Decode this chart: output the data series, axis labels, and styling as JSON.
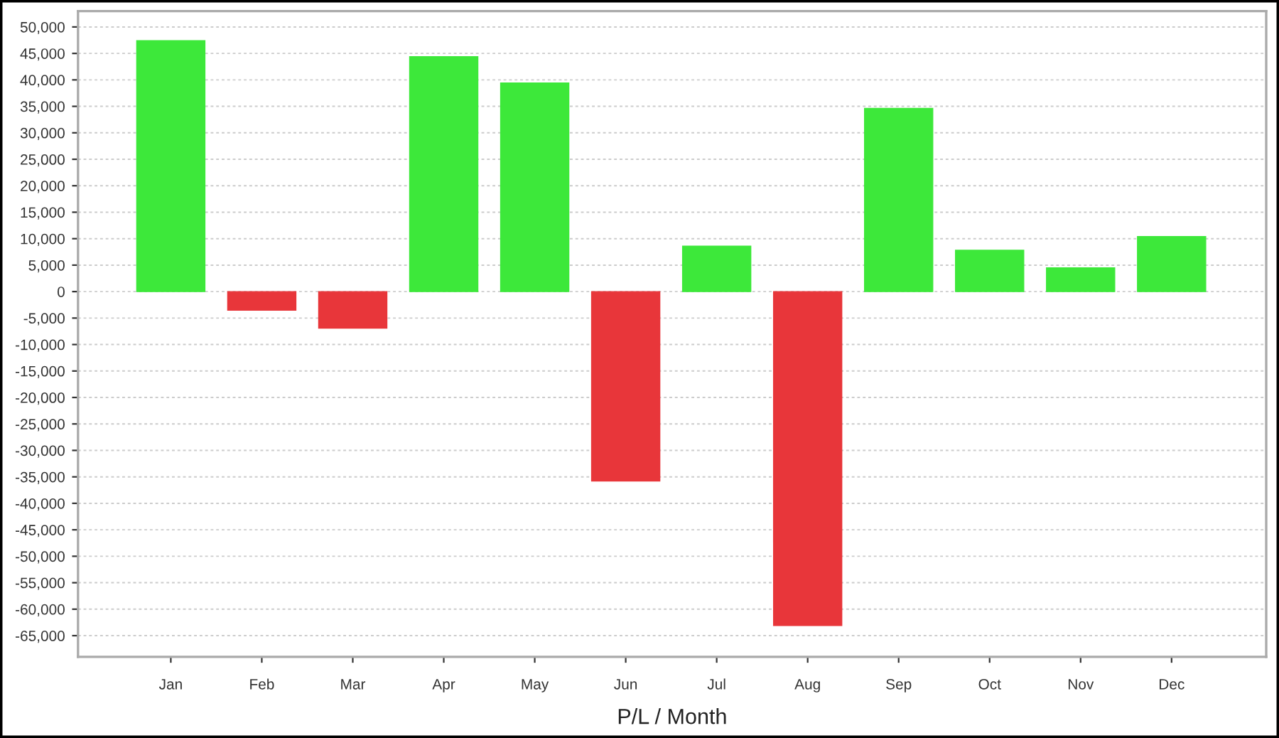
{
  "chart_data": {
    "type": "bar",
    "xlabel": "P/L / Month",
    "categories": [
      "Jan",
      "Feb",
      "Mar",
      "Apr",
      "May",
      "Jun",
      "Jul",
      "Aug",
      "Sep",
      "Oct",
      "Nov",
      "Dec"
    ],
    "values": [
      47400,
      -3500,
      -6900,
      44400,
      39400,
      -35800,
      8600,
      -63100,
      34600,
      7800,
      4500,
      10400
    ],
    "colors": [
      "#3de83a",
      "#e8363a",
      "#e8363a",
      "#3de83a",
      "#3de83a",
      "#e8363a",
      "#3de83a",
      "#e8363a",
      "#3de83a",
      "#3de83a",
      "#3de83a",
      "#3de83a"
    ],
    "ylim": [
      -69000,
      53000
    ],
    "yticks": [
      {
        "value": -65000,
        "label": "-65,000"
      },
      {
        "value": -60000,
        "label": "-60,000"
      },
      {
        "value": -55000,
        "label": "-55,000"
      },
      {
        "value": -50000,
        "label": "-50,000"
      },
      {
        "value": -45000,
        "label": "-45,000"
      },
      {
        "value": -40000,
        "label": "-40,000"
      },
      {
        "value": -35000,
        "label": "-35,000"
      },
      {
        "value": -30000,
        "label": "-30,000"
      },
      {
        "value": -25000,
        "label": "-25,000"
      },
      {
        "value": -20000,
        "label": "-20,000"
      },
      {
        "value": -15000,
        "label": "-15,000"
      },
      {
        "value": -10000,
        "label": "-10,000"
      },
      {
        "value": -5000,
        "label": "-5,000"
      },
      {
        "value": 0,
        "label": "0"
      },
      {
        "value": 5000,
        "label": "5,000"
      },
      {
        "value": 10000,
        "label": "10,000"
      },
      {
        "value": 15000,
        "label": "15,000"
      },
      {
        "value": 20000,
        "label": "20,000"
      },
      {
        "value": 25000,
        "label": "25,000"
      },
      {
        "value": 30000,
        "label": "30,000"
      },
      {
        "value": 35000,
        "label": "35,000"
      },
      {
        "value": 40000,
        "label": "40,000"
      },
      {
        "value": 45000,
        "label": "45,000"
      },
      {
        "value": 50000,
        "label": "50,000"
      }
    ],
    "grid": "y",
    "legend": false
  }
}
